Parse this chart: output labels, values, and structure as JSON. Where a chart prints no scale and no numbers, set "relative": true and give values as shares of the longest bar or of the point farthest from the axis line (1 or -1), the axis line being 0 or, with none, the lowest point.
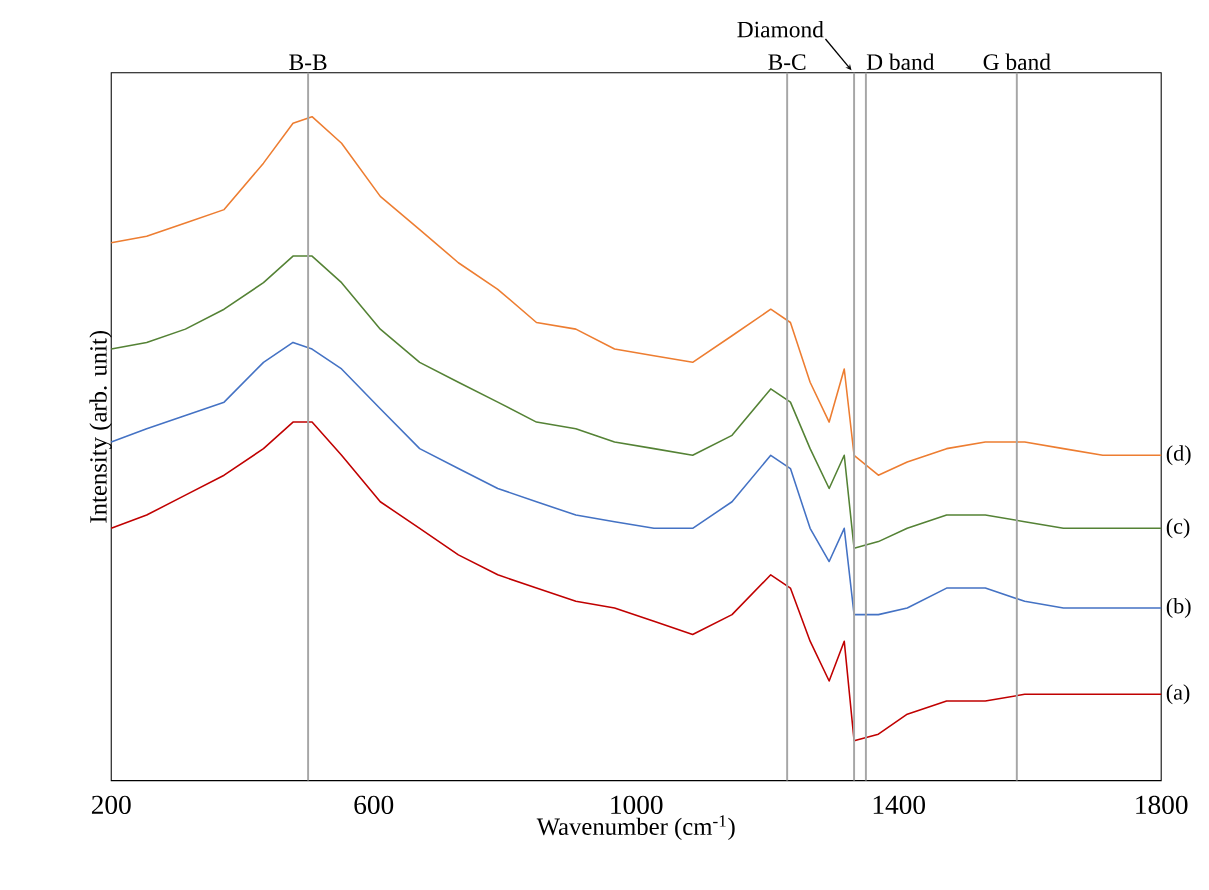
{
  "chart_data": {
    "type": "line",
    "relative": true,
    "xlabel": "Wavenumber (cm$^{-1}$)",
    "ylabel": "Intensity (arb. unit)",
    "xlim": [
      200,
      1800
    ],
    "xticks": [
      200,
      600,
      1000,
      1400,
      1800
    ],
    "x": [
      200,
      254,
      313,
      372,
      432,
      477,
      506,
      551,
      610,
      670,
      729,
      789,
      848,
      908,
      967,
      1027,
      1086,
      1146,
      1205,
      1235,
      1265,
      1294,
      1317,
      1332,
      1369,
      1413,
      1473,
      1532,
      1592,
      1651,
      1711,
      1770,
      1800
    ],
    "series": [
      {
        "name": "(a)",
        "color": "#c00000",
        "values": [
          0.38,
          0.4,
          0.43,
          0.46,
          0.5,
          0.54,
          0.54,
          0.49,
          0.42,
          0.38,
          0.34,
          0.31,
          0.29,
          0.27,
          0.26,
          0.24,
          0.22,
          0.25,
          0.31,
          0.29,
          0.21,
          0.15,
          0.21,
          0.06,
          0.07,
          0.1,
          0.12,
          0.12,
          0.13,
          0.13,
          0.13,
          0.13,
          0.13
        ]
      },
      {
        "name": "(b)",
        "color": "#4472c4",
        "values": [
          0.51,
          0.53,
          0.55,
          0.57,
          0.63,
          0.66,
          0.65,
          0.62,
          0.56,
          0.5,
          0.47,
          0.44,
          0.42,
          0.4,
          0.39,
          0.38,
          0.38,
          0.42,
          0.49,
          0.47,
          0.38,
          0.33,
          0.38,
          0.25,
          0.25,
          0.26,
          0.29,
          0.29,
          0.27,
          0.26,
          0.26,
          0.26,
          0.26
        ]
      },
      {
        "name": "(c)",
        "color": "#548235",
        "values": [
          0.65,
          0.66,
          0.68,
          0.71,
          0.75,
          0.79,
          0.79,
          0.75,
          0.68,
          0.63,
          0.6,
          0.57,
          0.54,
          0.53,
          0.51,
          0.5,
          0.49,
          0.52,
          0.59,
          0.57,
          0.5,
          0.44,
          0.49,
          0.35,
          0.36,
          0.38,
          0.4,
          0.4,
          0.39,
          0.38,
          0.38,
          0.38,
          0.38
        ]
      },
      {
        "name": "(d)",
        "color": "#ed7d31",
        "values": [
          0.81,
          0.82,
          0.84,
          0.86,
          0.93,
          0.99,
          1.0,
          0.96,
          0.88,
          0.83,
          0.78,
          0.74,
          0.69,
          0.68,
          0.65,
          0.64,
          0.63,
          0.67,
          0.71,
          0.69,
          0.6,
          0.54,
          0.62,
          0.49,
          0.46,
          0.48,
          0.5,
          0.51,
          0.51,
          0.5,
          0.49,
          0.49,
          0.49
        ]
      }
    ],
    "ref_lines": [
      {
        "axis": "x",
        "value": 500,
        "label": "B-B",
        "color": "#a6a6a6"
      },
      {
        "axis": "x",
        "value": 1230,
        "label": "B-C",
        "color": "#a6a6a6"
      },
      {
        "axis": "x",
        "value": 1332,
        "label": "Diamond",
        "color": "#a6a6a6"
      },
      {
        "axis": "x",
        "value": 1350,
        "label": "D band",
        "color": "#a6a6a6"
      },
      {
        "axis": "x",
        "value": 1580,
        "label": "G band",
        "color": "#a6a6a6"
      }
    ]
  }
}
